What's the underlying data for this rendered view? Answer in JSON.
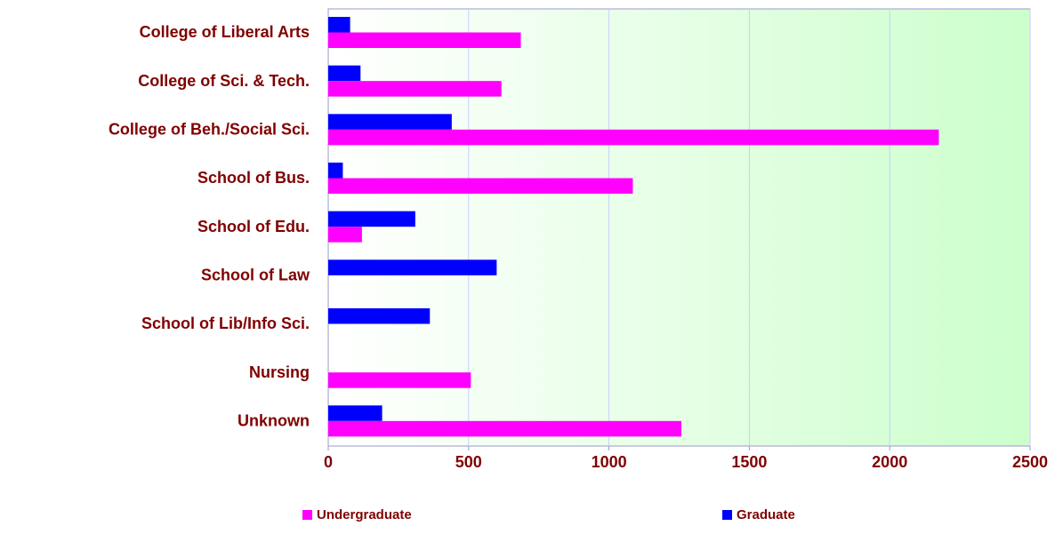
{
  "chart_data": {
    "type": "bar",
    "orientation": "horizontal",
    "categories": [
      "College of Liberal Arts",
      "College of Sci. & Tech.",
      "College of Beh./Social Sci.",
      "School of Bus.",
      "School of Edu.",
      "School of Law",
      "School of Lib/Info Sci.",
      "Nursing",
      "Unknown"
    ],
    "series": [
      {
        "name": "Undergraduate",
        "color": "#ff00ff",
        "values": [
          686,
          617,
          2175,
          1085,
          120,
          0,
          0,
          508,
          1258
        ]
      },
      {
        "name": "Graduate",
        "color": "#0000ff",
        "values": [
          78,
          115,
          440,
          52,
          310,
          600,
          362,
          0,
          192
        ]
      }
    ],
    "xlim": [
      0,
      2500
    ],
    "xticks": [
      0,
      500,
      1000,
      1500,
      2000,
      2500
    ],
    "grid": true,
    "legend": "bottom"
  }
}
